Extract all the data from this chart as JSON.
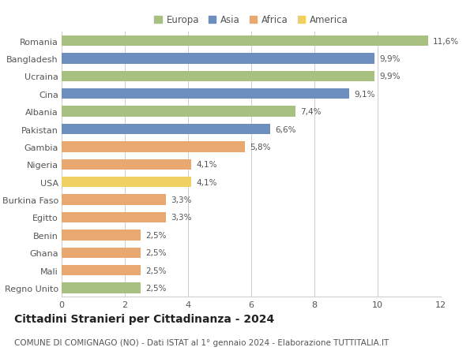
{
  "countries": [
    "Romania",
    "Bangladesh",
    "Ucraina",
    "Cina",
    "Albania",
    "Pakistan",
    "Gambia",
    "Nigeria",
    "USA",
    "Burkina Faso",
    "Egitto",
    "Benin",
    "Ghana",
    "Mali",
    "Regno Unito"
  ],
  "values": [
    11.6,
    9.9,
    9.9,
    9.1,
    7.4,
    6.6,
    5.8,
    4.1,
    4.1,
    3.3,
    3.3,
    2.5,
    2.5,
    2.5,
    2.5
  ],
  "labels": [
    "11,6%",
    "9,9%",
    "9,9%",
    "9,1%",
    "7,4%",
    "6,6%",
    "5,8%",
    "4,1%",
    "4,1%",
    "3,3%",
    "3,3%",
    "2,5%",
    "2,5%",
    "2,5%",
    "2,5%"
  ],
  "continents": [
    "Europa",
    "Asia",
    "Europa",
    "Asia",
    "Europa",
    "Asia",
    "Africa",
    "Africa",
    "America",
    "Africa",
    "Africa",
    "Africa",
    "Africa",
    "Africa",
    "Europa"
  ],
  "colors": {
    "Europa": "#a8c080",
    "Asia": "#6e8ec0",
    "Africa": "#e8a870",
    "America": "#f0d060"
  },
  "legend_order": [
    "Europa",
    "Asia",
    "Africa",
    "America"
  ],
  "title": "Cittadini Stranieri per Cittadinanza - 2024",
  "subtitle": "COMUNE DI COMIGNAGO (NO) - Dati ISTAT al 1° gennaio 2024 - Elaborazione TUTTITALIA.IT",
  "xlim": [
    0,
    12
  ],
  "xticks": [
    0,
    2,
    4,
    6,
    8,
    10,
    12
  ],
  "background_color": "#ffffff",
  "grid_color": "#cccccc",
  "bar_height": 0.6,
  "title_fontsize": 10,
  "subtitle_fontsize": 7.5,
  "label_fontsize": 7.5,
  "ytick_fontsize": 8,
  "xtick_fontsize": 8,
  "legend_fontsize": 8.5
}
